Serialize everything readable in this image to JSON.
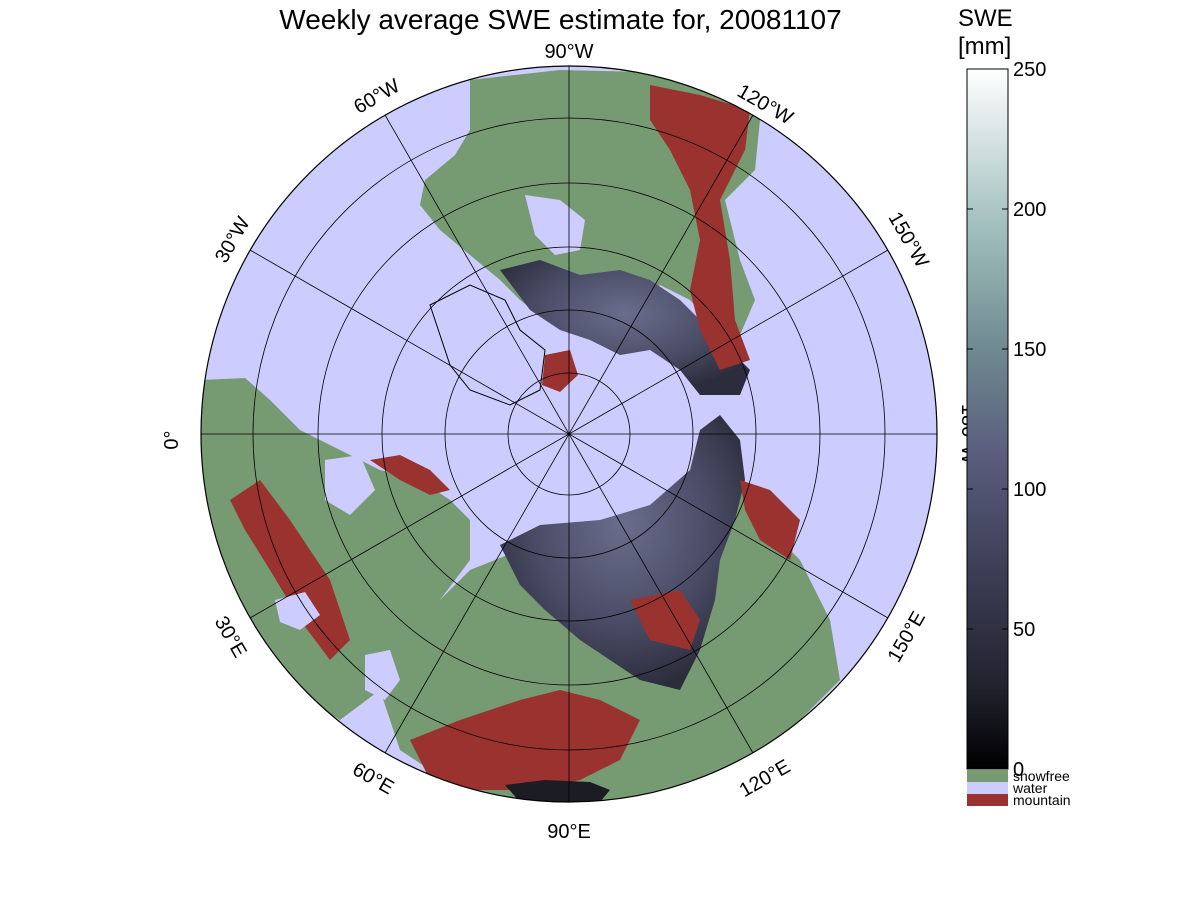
{
  "title": "Weekly average SWE estimate for, 20081107",
  "colors": {
    "water": "#cccdfe",
    "snowfree": "#769b72",
    "mountain": "#9a3330",
    "swe_low": "#000000",
    "swe_mid": "#4b4e6d",
    "swe_high": "#ffffff"
  },
  "map": {
    "projection": "north polar stereographic",
    "longitude_labels": [
      {
        "id": "lon-90w",
        "text": "90°W"
      },
      {
        "id": "lon-60w",
        "text": "60°W"
      },
      {
        "id": "lon-120w",
        "text": "120°W"
      },
      {
        "id": "lon-30w",
        "text": "30°W"
      },
      {
        "id": "lon-150w",
        "text": "150°W"
      },
      {
        "id": "lon-0",
        "text": "0°"
      },
      {
        "id": "lon-180w",
        "text": "180°W"
      },
      {
        "id": "lon-30e",
        "text": "30°E"
      },
      {
        "id": "lon-150e",
        "text": "150°E"
      },
      {
        "id": "lon-60e",
        "text": "60°E"
      },
      {
        "id": "lon-120e",
        "text": "120°E"
      },
      {
        "id": "lon-90e",
        "text": "90°E"
      }
    ]
  },
  "colorbar": {
    "title_line1": "SWE",
    "title_line2": "[mm]",
    "ticks": [
      "0",
      "50",
      "100",
      "150",
      "200",
      "250"
    ],
    "range": [
      0,
      250
    ],
    "categories": [
      {
        "label": "snowfree",
        "color": "#769b72"
      },
      {
        "label": "water",
        "color": "#cccdfe"
      },
      {
        "label": "mountain",
        "color": "#9a3330"
      }
    ]
  }
}
